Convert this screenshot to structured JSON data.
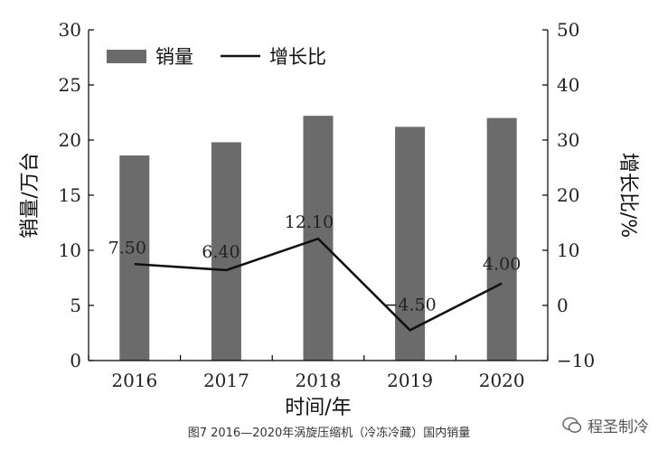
{
  "chart_data": {
    "type": "bar",
    "categories": [
      "2016",
      "2017",
      "2018",
      "2019",
      "2020"
    ],
    "series": [
      {
        "name": "销量",
        "type": "bar",
        "axis": "left",
        "values": [
          18.6,
          19.8,
          22.2,
          21.2,
          22.0
        ]
      },
      {
        "name": "增长比",
        "type": "line",
        "axis": "right",
        "values": [
          7.5,
          6.4,
          12.1,
          -4.5,
          4.0
        ],
        "labels": [
          "7.50",
          "6.40",
          "12.10",
          "−4.50",
          "4.00"
        ]
      }
    ],
    "xlabel": "时间/年",
    "ylabel": "销量/万台",
    "y2label": "增长比/%",
    "ylim": [
      0,
      30
    ],
    "y2lim": [
      -10,
      50
    ],
    "yticks": [
      "0",
      "5",
      "10",
      "15",
      "20",
      "25",
      "30"
    ],
    "y2ticks": [
      "−10",
      "0",
      "10",
      "20",
      "30",
      "40",
      "50"
    ],
    "legend_position": "top-left",
    "colors": {
      "bar": "#6b6b6b",
      "line": "#111111"
    }
  },
  "caption": "图7  2016—2020年涡旋压缩机（冷冻冷藏）国内销量",
  "watermark": "程圣制冷"
}
